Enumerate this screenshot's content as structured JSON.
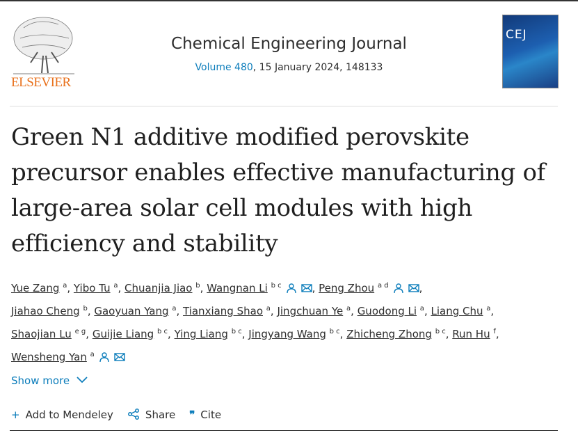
{
  "publisher": {
    "name": "ELSEVIER",
    "brand_color": "#e9711c"
  },
  "journal": {
    "title": "Chemical Engineering Journal",
    "volume_link": "Volume 480",
    "volume_rest": ", 15 January 2024, 148133",
    "cover_text": "CEJ"
  },
  "article": {
    "title": "Green N1 additive modified perovskite precursor enables effective manufacturing of large-area solar cell modules with high efficiency and stability"
  },
  "authors": [
    {
      "name": "Yue Zang",
      "sup": "a"
    },
    {
      "name": "Yibo Tu",
      "sup": "a"
    },
    {
      "name": "Chuanjia Jiao",
      "sup": "b"
    },
    {
      "name": "Wangnan Li",
      "sup": "b c",
      "contact": true
    },
    {
      "name": "Peng Zhou",
      "sup": "a d",
      "contact": true
    },
    {
      "name": "Jiahao Cheng",
      "sup": "b"
    },
    {
      "name": "Gaoyuan Yang",
      "sup": "a"
    },
    {
      "name": "Tianxiang Shao",
      "sup": "a"
    },
    {
      "name": "Jingchuan Ye",
      "sup": "a"
    },
    {
      "name": "Guodong Li",
      "sup": "a"
    },
    {
      "name": "Liang Chu",
      "sup": "a"
    },
    {
      "name": "Shaojian Lu",
      "sup": "e g"
    },
    {
      "name": "Guijie Liang",
      "sup": "b c"
    },
    {
      "name": "Ying Liang",
      "sup": "b c"
    },
    {
      "name": "Jingyang Wang",
      "sup": "b c"
    },
    {
      "name": "Zhicheng Zhong",
      "sup": "b c"
    },
    {
      "name": "Run Hu",
      "sup": "f"
    },
    {
      "name": "Wensheng Yan",
      "sup": "a",
      "contact": true
    }
  ],
  "show_more": "Show more",
  "actions": {
    "mendeley": "Add to Mendeley",
    "share": "Share",
    "cite": "Cite"
  },
  "link_color": "#0c7dbb"
}
